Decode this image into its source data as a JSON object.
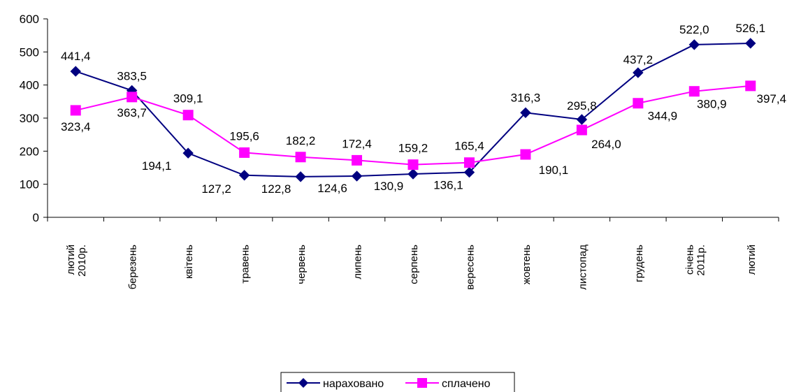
{
  "chart_data": {
    "type": "line",
    "categories": [
      [
        "лютий",
        "2010р."
      ],
      [
        "березень"
      ],
      [
        "квітень"
      ],
      [
        "травень"
      ],
      [
        "червень"
      ],
      [
        "липень"
      ],
      [
        "серпень"
      ],
      [
        "вересень"
      ],
      [
        "жовтень"
      ],
      [
        "листопад"
      ],
      [
        "грудень"
      ],
      [
        "січень",
        "2011р."
      ],
      [
        "лютий"
      ]
    ],
    "series": [
      {
        "name": "нараховано",
        "color": "#000080",
        "marker": "diamond",
        "values": [
          441.4,
          383.5,
          194.1,
          127.2,
          122.8,
          124.6,
          130.9,
          136.1,
          316.3,
          295.8,
          437.2,
          522.0,
          526.1
        ],
        "labels": [
          "441,4",
          "383,5",
          "194,1",
          "127,2",
          "122,8",
          "124,6",
          "130,9",
          "136,1",
          "316,3",
          "295,8",
          "437,2",
          "522,0",
          "526,1"
        ]
      },
      {
        "name": "сплачено",
        "color": "#FF00FF",
        "marker": "square",
        "values": [
          323.4,
          363.7,
          309.1,
          195.6,
          182.2,
          172.4,
          159.2,
          165.4,
          190.1,
          264.0,
          344.9,
          380.9,
          397.4
        ],
        "labels": [
          "323,4",
          "363,7",
          "309,1",
          "195,6",
          "182,2",
          "172,4",
          "159,2",
          "165,4",
          "190,1",
          "264,0",
          "344,9",
          "380,9",
          "397,4"
        ]
      }
    ],
    "yticks": [
      "0",
      "100",
      "200",
      "300",
      "400",
      "500",
      "600"
    ],
    "ylim": [
      0,
      600
    ],
    "grid": false,
    "legend": "bottom"
  }
}
